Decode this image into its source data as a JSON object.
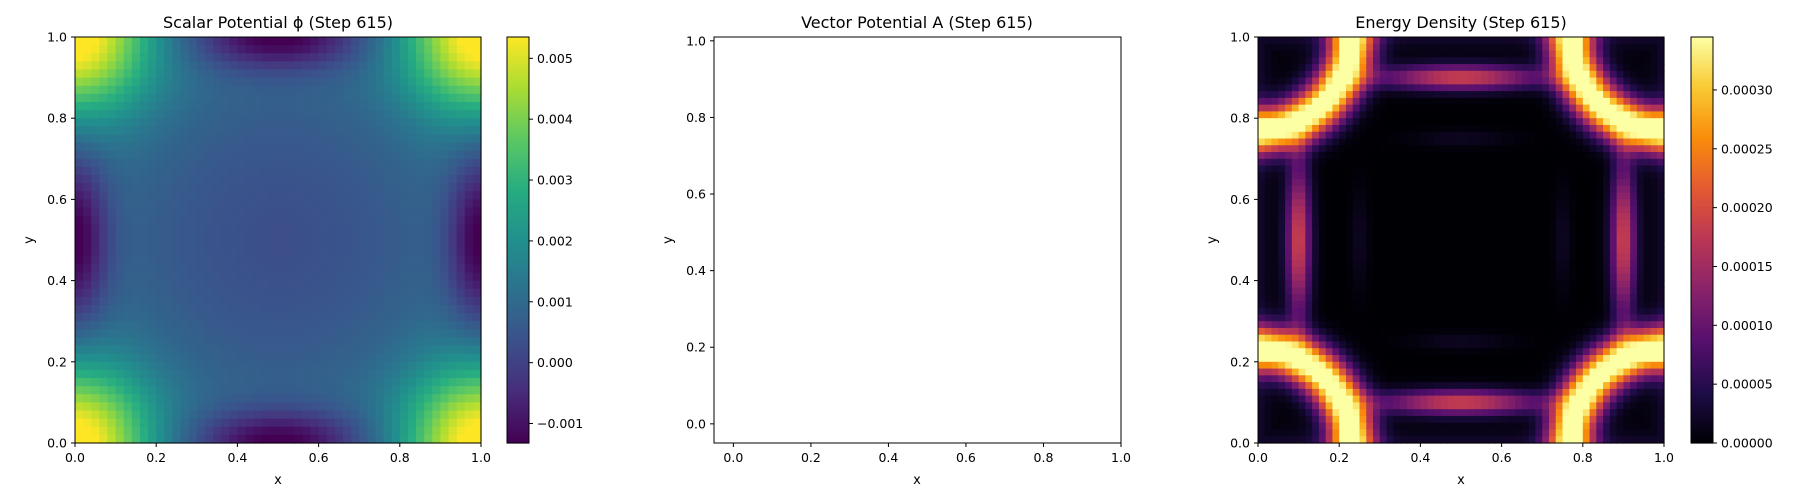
{
  "figure": {
    "background": "#ffffff"
  },
  "chart_data": [
    {
      "type": "heatmap",
      "title": "Scalar Potential ϕ (Step 615)",
      "xlabel": "x",
      "ylabel": "y",
      "xlim": [
        0.0,
        1.0
      ],
      "ylim": [
        0.0,
        1.0
      ],
      "xticks": [
        "0.0",
        "0.2",
        "0.4",
        "0.6",
        "0.8",
        "1.0"
      ],
      "yticks": [
        "0.0",
        "0.2",
        "0.4",
        "0.6",
        "0.8",
        "1.0"
      ],
      "colormap": "viridis",
      "grid": false,
      "field": "scalar-potential",
      "colorbar": {
        "vmin": -0.00132,
        "vmax": 0.00535,
        "ticks": [
          {
            "value": -0.001,
            "label": "−0.001"
          },
          {
            "value": 0.0,
            "label": "0.000"
          },
          {
            "value": 0.001,
            "label": "0.001"
          },
          {
            "value": 0.002,
            "label": "0.002"
          },
          {
            "value": 0.003,
            "label": "0.003"
          },
          {
            "value": 0.004,
            "label": "0.004"
          },
          {
            "value": 0.005,
            "label": "0.005"
          }
        ]
      },
      "grid_resolution": 50
    },
    {
      "type": "line",
      "title": "Vector Potential A (Step 615)",
      "xlabel": "x",
      "ylabel": "y",
      "xlim": [
        -0.05,
        1.0
      ],
      "ylim": [
        -0.05,
        1.01
      ],
      "xticks": [
        "0.0",
        "0.2",
        "0.4",
        "0.6",
        "0.8",
        "1.0"
      ],
      "yticks": [
        "0.0",
        "0.2",
        "0.4",
        "0.6",
        "0.8",
        "1.0"
      ],
      "grid": false,
      "series": []
    },
    {
      "type": "heatmap",
      "title": "Energy Density (Step 615)",
      "xlabel": "x",
      "ylabel": "y",
      "xlim": [
        0.0,
        1.0
      ],
      "ylim": [
        0.0,
        1.0
      ],
      "xticks": [
        "0.0",
        "0.2",
        "0.4",
        "0.6",
        "0.8",
        "1.0"
      ],
      "yticks": [
        "0.0",
        "0.2",
        "0.4",
        "0.6",
        "0.8",
        "1.0"
      ],
      "colormap": "inferno",
      "grid": false,
      "field": "energy-density",
      "colorbar": {
        "vmin": 0.0,
        "vmax": 0.000345,
        "ticks": [
          {
            "value": 0.0,
            "label": "0.00000"
          },
          {
            "value": 5e-05,
            "label": "0.00005"
          },
          {
            "value": 0.0001,
            "label": "0.00010"
          },
          {
            "value": 0.00015,
            "label": "0.00015"
          },
          {
            "value": 0.0002,
            "label": "0.00020"
          },
          {
            "value": 0.00025,
            "label": "0.00025"
          },
          {
            "value": 0.0003,
            "label": "0.00030"
          }
        ]
      },
      "grid_resolution": 60
    }
  ]
}
